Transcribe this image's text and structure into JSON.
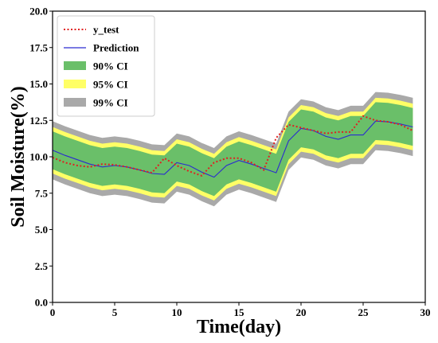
{
  "chart_data": {
    "type": "line",
    "xlabel": "Time(day)",
    "ylabel": "Soil Moisture(%)",
    "xlim": [
      0,
      30
    ],
    "ylim": [
      0,
      20
    ],
    "xticks": [
      0,
      5,
      10,
      15,
      20,
      25,
      30
    ],
    "xtick_labels": [
      "0",
      "5",
      "10",
      "15",
      "20",
      "25",
      "30"
    ],
    "yticks": [
      0,
      2.5,
      5,
      7.5,
      10,
      12.5,
      15,
      17.5,
      20
    ],
    "ytick_labels": [
      "0.0",
      "2.5",
      "5.0",
      "7.5",
      "10.0",
      "12.5",
      "15.0",
      "17.5",
      "20.0"
    ],
    "grid": false,
    "legend_position": "top-left",
    "x": [
      0,
      1,
      2,
      3,
      4,
      5,
      6,
      7,
      8,
      9,
      10,
      11,
      12,
      13,
      14,
      15,
      16,
      17,
      18,
      19,
      20,
      21,
      22,
      23,
      24,
      25,
      26,
      27,
      28,
      29
    ],
    "series": [
      {
        "name": "y_test",
        "style": "dotted",
        "color": "#e02020",
        "values": [
          9.95,
          9.6,
          9.4,
          9.3,
          9.5,
          9.45,
          9.3,
          9.1,
          8.9,
          9.9,
          9.4,
          9.0,
          8.7,
          9.6,
          9.9,
          9.9,
          9.6,
          9.1,
          11.3,
          12.2,
          12.0,
          11.8,
          11.6,
          11.7,
          11.7,
          12.8,
          12.5,
          12.4,
          12.2,
          11.8
        ]
      },
      {
        "name": "Prediction",
        "style": "solid",
        "color": "#2b2bd0",
        "values": [
          10.45,
          10.1,
          9.8,
          9.5,
          9.3,
          9.4,
          9.3,
          9.1,
          8.85,
          8.8,
          9.6,
          9.4,
          8.95,
          8.6,
          9.4,
          9.75,
          9.5,
          9.2,
          8.9,
          11.1,
          11.95,
          11.8,
          11.4,
          11.2,
          11.5,
          11.5,
          12.45,
          12.4,
          12.25,
          12.05
        ]
      }
    ],
    "intervals": [
      {
        "name": "99% CI",
        "color": "#a9a9a9",
        "half_width": 2.0
      },
      {
        "name": "95% CI",
        "color": "#ffff66",
        "half_width": 1.6
      },
      {
        "name": "90% CI",
        "color": "#6abf69",
        "half_width": 1.3
      }
    ],
    "legend_order": [
      "y_test",
      "Prediction",
      "90% CI",
      "95% CI",
      "99% CI"
    ]
  }
}
